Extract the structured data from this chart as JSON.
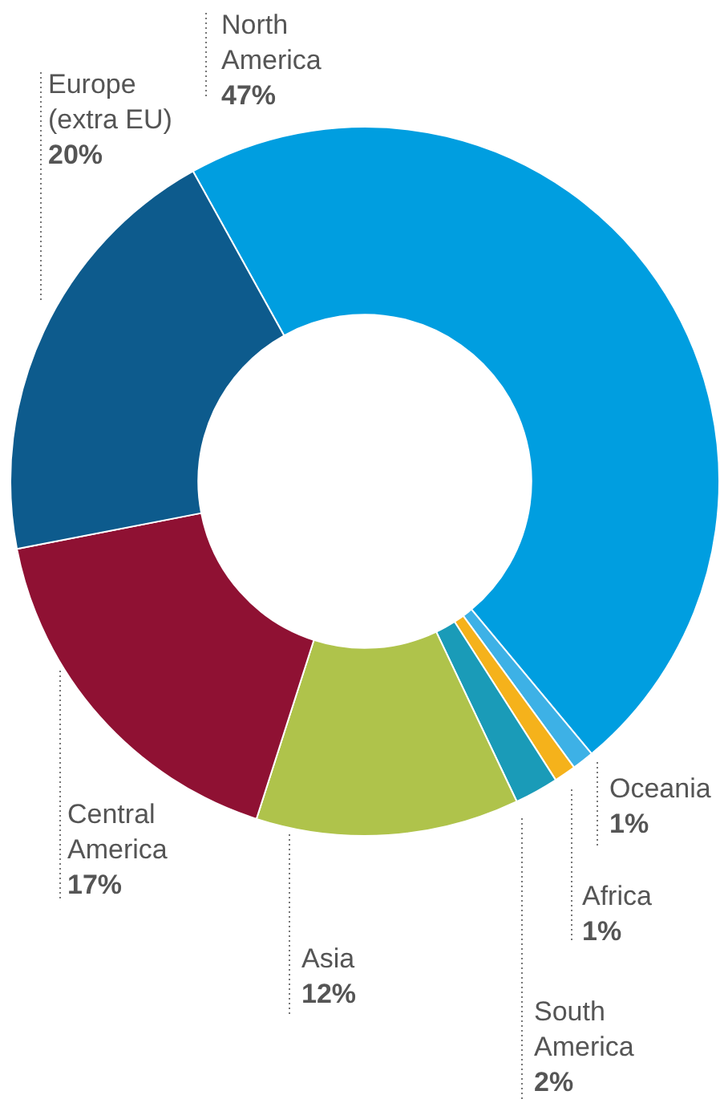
{
  "chart_data": {
    "type": "donut",
    "categories": [
      "North America",
      "Oceania",
      "Africa",
      "South America",
      "Asia",
      "Central America",
      "Europe (extra EU)"
    ],
    "values": [
      47,
      1,
      1,
      2,
      12,
      17,
      20
    ],
    "colors": [
      "#009ee0",
      "#3db1e6",
      "#f5b21b",
      "#1a9bb8",
      "#afc34b",
      "#8f1133",
      "#0d5b8d"
    ],
    "value_labels": [
      "47%",
      "1%",
      "1%",
      "2%",
      "12%",
      "17%",
      "20%"
    ],
    "legend": false
  }
}
